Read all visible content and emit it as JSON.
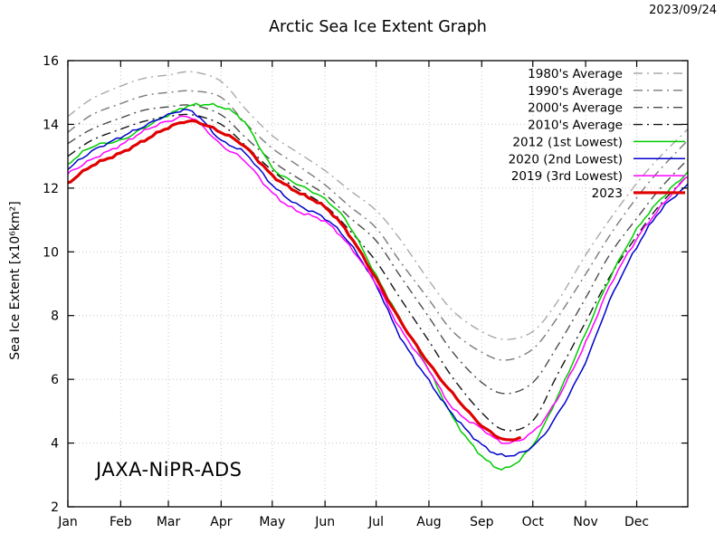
{
  "header": {
    "date_label": "2023/09/24"
  },
  "chart_data": {
    "type": "line",
    "title": "Arctic Sea Ice Extent Graph",
    "watermark": "JAXA-NiPR-ADS",
    "xlabel": "",
    "ylabel": "Sea Ice Extent [x10⁶km²]",
    "x_unit": "day_of_year",
    "xlim": [
      1,
      365
    ],
    "ylim": [
      2,
      16
    ],
    "grid": true,
    "legend_position": "top-right",
    "y_ticks": [
      2,
      4,
      6,
      8,
      10,
      12,
      14,
      16
    ],
    "x_ticks": [
      {
        "day": 1,
        "label": "Jan"
      },
      {
        "day": 32,
        "label": "Feb"
      },
      {
        "day": 60,
        "label": "Mar"
      },
      {
        "day": 91,
        "label": "Apr"
      },
      {
        "day": 121,
        "label": "May"
      },
      {
        "day": 152,
        "label": "Jun"
      },
      {
        "day": 182,
        "label": "Jul"
      },
      {
        "day": 213,
        "label": "Aug"
      },
      {
        "day": 244,
        "label": "Sep"
      },
      {
        "day": 274,
        "label": "Oct"
      },
      {
        "day": 305,
        "label": "Nov"
      },
      {
        "day": 335,
        "label": "Dec"
      }
    ],
    "series": [
      {
        "name": "avg-1980s",
        "label": "1980's Average",
        "color": "#a9a9a9",
        "style": "dashdot",
        "width": 1.4,
        "jitter": 0,
        "days": [
          1,
          15,
          32,
          46,
          60,
          74,
          91,
          105,
          121,
          135,
          152,
          166,
          182,
          196,
          213,
          227,
          244,
          258,
          274,
          288,
          305,
          319,
          335,
          349,
          365
        ],
        "values": [
          14.25,
          14.8,
          15.2,
          15.45,
          15.55,
          15.65,
          15.35,
          14.5,
          13.65,
          13.15,
          12.55,
          11.95,
          11.3,
          10.4,
          9.1,
          8.15,
          7.5,
          7.25,
          7.5,
          8.4,
          9.9,
          11.0,
          12.15,
          13.0,
          13.85
        ]
      },
      {
        "name": "avg-1990s",
        "label": "1990's Average",
        "color": "#7a7a7a",
        "style": "dashdot",
        "width": 1.4,
        "jitter": 0,
        "days": [
          1,
          15,
          32,
          46,
          60,
          74,
          91,
          105,
          121,
          135,
          152,
          166,
          182,
          196,
          213,
          227,
          244,
          258,
          274,
          288,
          305,
          319,
          335,
          349,
          365
        ],
        "values": [
          13.75,
          14.3,
          14.65,
          14.9,
          15.0,
          15.05,
          14.85,
          14.05,
          13.25,
          12.75,
          12.1,
          11.45,
          10.75,
          9.7,
          8.5,
          7.5,
          6.85,
          6.6,
          6.95,
          7.9,
          9.3,
          10.5,
          11.7,
          12.6,
          13.5
        ]
      },
      {
        "name": "avg-2000s",
        "label": "2000's Average",
        "color": "#4d4d4d",
        "style": "dashdot",
        "width": 1.4,
        "jitter": 0,
        "days": [
          1,
          15,
          32,
          46,
          60,
          74,
          91,
          105,
          121,
          135,
          152,
          166,
          182,
          196,
          213,
          227,
          244,
          258,
          274,
          288,
          305,
          319,
          335,
          349,
          365
        ],
        "values": [
          13.4,
          13.85,
          14.2,
          14.45,
          14.55,
          14.6,
          14.3,
          13.6,
          12.85,
          12.35,
          11.8,
          11.1,
          10.35,
          9.25,
          7.95,
          6.85,
          5.9,
          5.55,
          5.9,
          7.0,
          8.55,
          9.9,
          11.05,
          12.0,
          12.9
        ]
      },
      {
        "name": "avg-2010s",
        "label": "2010's Average",
        "color": "#141414",
        "style": "dashdot",
        "width": 1.4,
        "jitter": 0,
        "days": [
          1,
          15,
          32,
          46,
          60,
          74,
          91,
          105,
          121,
          135,
          152,
          166,
          182,
          196,
          213,
          227,
          244,
          258,
          274,
          288,
          305,
          319,
          335,
          349,
          365
        ],
        "values": [
          13.0,
          13.5,
          13.85,
          14.1,
          14.25,
          14.3,
          14.0,
          13.35,
          12.55,
          12.0,
          11.45,
          10.7,
          9.7,
          8.55,
          7.2,
          6.05,
          4.95,
          4.4,
          4.7,
          6.1,
          7.8,
          9.2,
          10.5,
          11.5,
          12.4
        ]
      },
      {
        "name": "year-2012",
        "label": "2012 (1st Lowest)",
        "color": "#00cc00",
        "style": "solid",
        "width": 1.5,
        "jitter": 0.05,
        "days": [
          1,
          15,
          32,
          46,
          60,
          74,
          91,
          105,
          121,
          135,
          152,
          166,
          182,
          196,
          213,
          227,
          244,
          258,
          274,
          288,
          305,
          319,
          335,
          349,
          365
        ],
        "values": [
          12.75,
          13.3,
          13.5,
          13.9,
          14.3,
          14.6,
          14.55,
          14.05,
          12.65,
          12.15,
          11.65,
          10.85,
          9.25,
          7.9,
          6.3,
          4.8,
          3.6,
          3.2,
          3.95,
          5.4,
          7.45,
          9.15,
          10.7,
          11.65,
          12.5
        ]
      },
      {
        "name": "year-2020",
        "label": "2020 (2nd Lowest)",
        "color": "#0000cc",
        "style": "solid",
        "width": 1.5,
        "jitter": 0.05,
        "days": [
          1,
          15,
          32,
          46,
          60,
          74,
          91,
          105,
          121,
          135,
          152,
          166,
          182,
          196,
          213,
          227,
          244,
          258,
          274,
          288,
          305,
          319,
          335,
          349,
          365
        ],
        "values": [
          12.6,
          13.15,
          13.6,
          13.95,
          14.3,
          14.4,
          13.5,
          13.1,
          12.1,
          11.5,
          11.05,
          10.3,
          8.95,
          7.35,
          5.95,
          4.9,
          3.95,
          3.6,
          3.9,
          4.85,
          6.55,
          8.45,
          10.15,
          11.3,
          12.1
        ]
      },
      {
        "name": "year-2019",
        "label": "2019 (3rd Lowest)",
        "color": "#ff00ff",
        "style": "solid",
        "width": 1.5,
        "jitter": 0.05,
        "days": [
          1,
          15,
          32,
          46,
          60,
          74,
          91,
          105,
          121,
          135,
          152,
          166,
          182,
          196,
          213,
          227,
          244,
          258,
          274,
          288,
          305,
          319,
          335,
          349,
          365
        ],
        "values": [
          12.45,
          12.9,
          13.35,
          13.8,
          14.1,
          14.2,
          13.35,
          12.85,
          11.85,
          11.3,
          10.95,
          10.2,
          9.0,
          7.6,
          6.3,
          5.1,
          4.45,
          4.0,
          4.35,
          5.35,
          7.15,
          8.9,
          10.4,
          11.4,
          12.4
        ]
      },
      {
        "name": "year-2023",
        "label": "2023",
        "color": "#e00000",
        "style": "solid",
        "width": 3.2,
        "jitter": 0.04,
        "days": [
          1,
          15,
          32,
          46,
          60,
          74,
          91,
          105,
          121,
          135,
          152,
          166,
          182,
          196,
          213,
          227,
          244,
          258,
          267
        ],
        "values": [
          12.15,
          12.7,
          13.1,
          13.5,
          13.9,
          14.1,
          13.75,
          13.3,
          12.4,
          11.9,
          11.4,
          10.55,
          9.15,
          7.85,
          6.5,
          5.55,
          4.55,
          4.1,
          4.2
        ]
      }
    ]
  }
}
